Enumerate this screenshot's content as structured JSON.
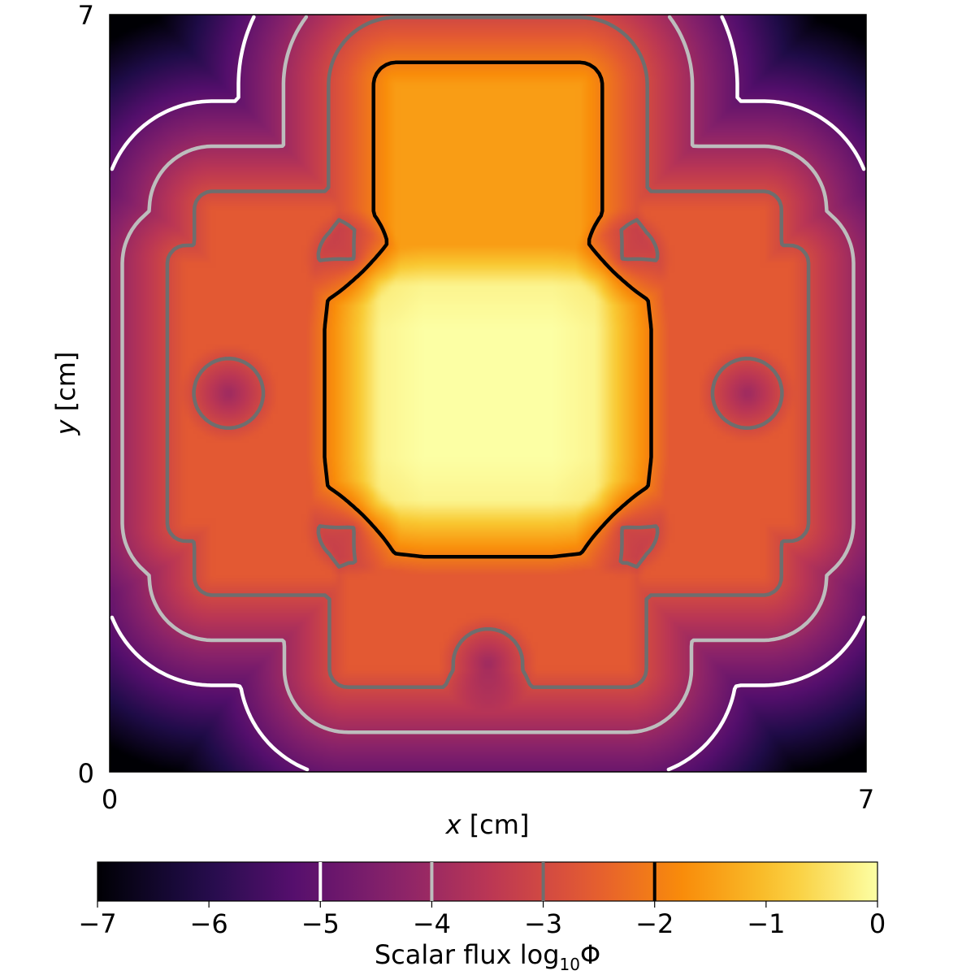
{
  "chart_data": {
    "type": "heatmap",
    "xlabel_var": "x",
    "xlabel_unit": " [cm]",
    "ylabel_var": "y",
    "ylabel_unit": " [cm]",
    "xlim": [
      0,
      7
    ],
    "ylim": [
      0,
      7
    ],
    "x_ticks": [
      "0",
      "7"
    ],
    "y_ticks": [
      "0",
      "7"
    ],
    "colormap": "inferno",
    "colorbar": {
      "label_text": "Scalar flux log",
      "label_sub": "10",
      "label_tail": "Φ",
      "range": [
        -7,
        0
      ],
      "ticks": [
        {
          "v": -7,
          "label": "−7"
        },
        {
          "v": -6,
          "label": "−6"
        },
        {
          "v": -5,
          "label": "−5"
        },
        {
          "v": -4,
          "label": "−4"
        },
        {
          "v": -3,
          "label": "−3"
        },
        {
          "v": -2,
          "label": "−2"
        },
        {
          "v": -1,
          "label": "−1"
        },
        {
          "v": 0,
          "label": "0"
        }
      ],
      "placement": "bottom"
    },
    "contour_levels": [
      {
        "level": -5,
        "color": "#ffffff"
      },
      {
        "level": -4,
        "color": "#bdbdbd"
      },
      {
        "level": -3,
        "color": "#6e6e6e"
      },
      {
        "level": -2,
        "color": "#000000"
      }
    ],
    "regions": {
      "source_center": [
        3.5,
        3.5
      ],
      "source_halfwidth": 1.0,
      "max_log_flux": 0,
      "void_log_flux": -7
    }
  }
}
